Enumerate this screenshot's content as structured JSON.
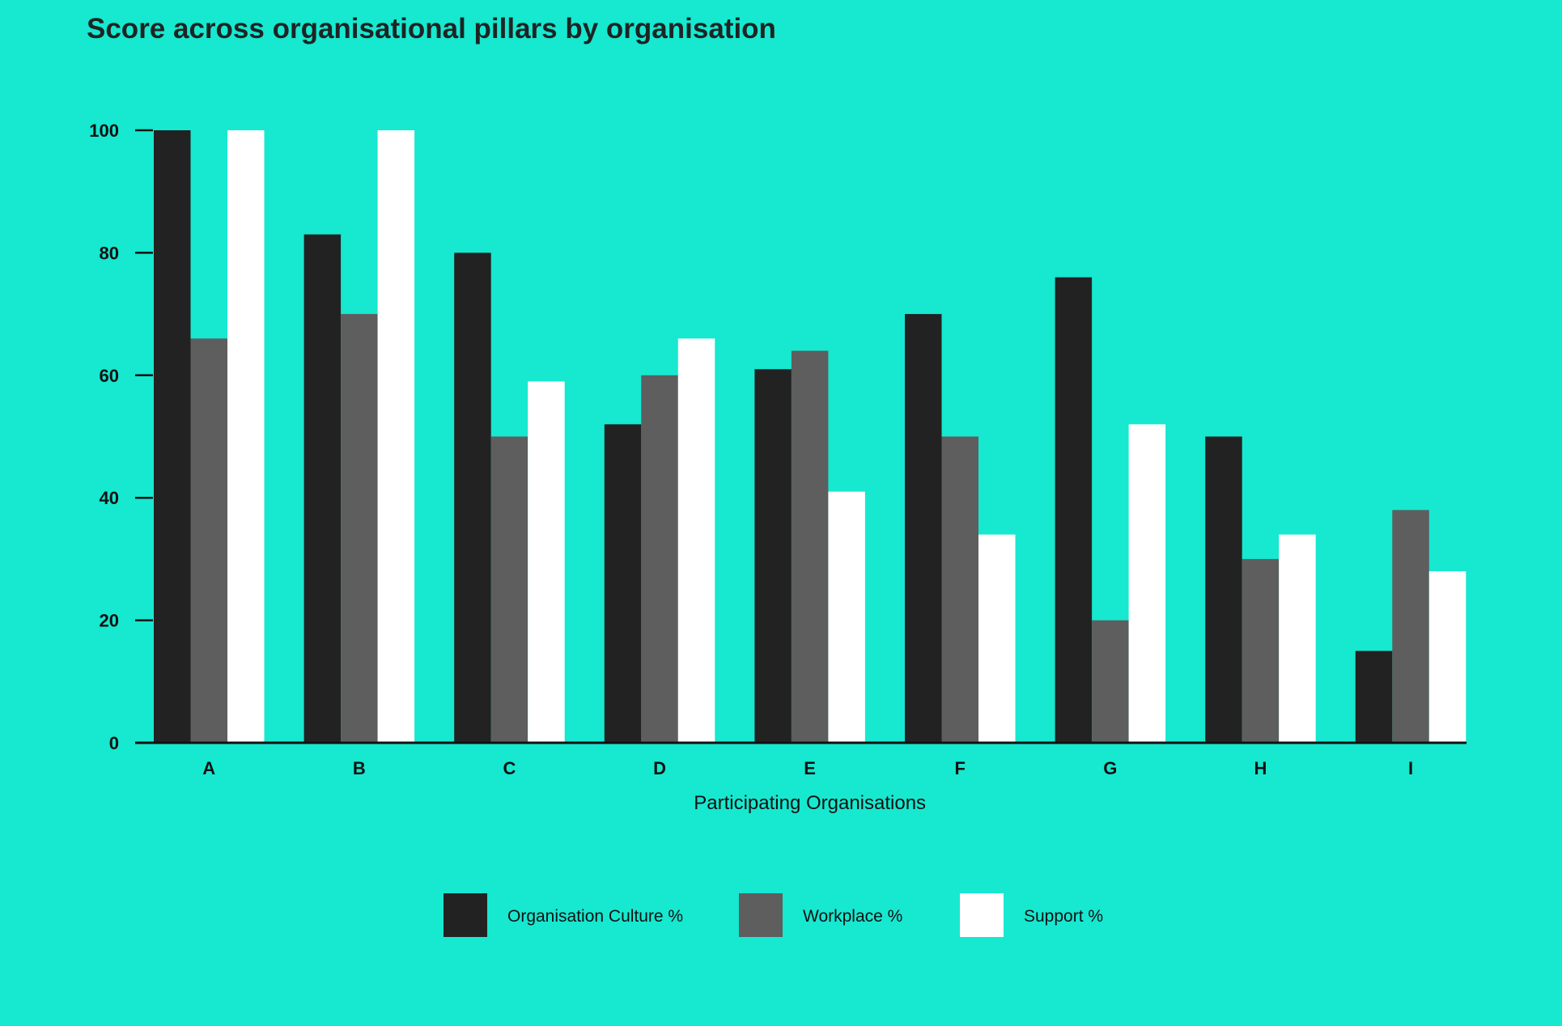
{
  "chart_data": {
    "type": "bar",
    "title": "Score across organisational pillars by organisation",
    "xlabel": "Participating Organisations",
    "ylabel": "",
    "ylim": [
      0,
      100
    ],
    "yticks": [
      0,
      20,
      40,
      60,
      80,
      100
    ],
    "grid": false,
    "legend_position": "bottom-center",
    "categories": [
      "A",
      "B",
      "C",
      "D",
      "E",
      "F",
      "G",
      "H",
      "I"
    ],
    "series": [
      {
        "name": "Organisation Culture %",
        "color": "#222222",
        "values": [
          100,
          83,
          80,
          52,
          61,
          70,
          76,
          50,
          15
        ]
      },
      {
        "name": "Workplace %",
        "color": "#5E5E5E",
        "values": [
          66,
          70,
          50,
          60,
          64,
          50,
          20,
          30,
          38
        ]
      },
      {
        "name": "Support %",
        "color": "#FFFFFF",
        "values": [
          100,
          100,
          59,
          66,
          41,
          34,
          52,
          34,
          28
        ]
      }
    ]
  }
}
